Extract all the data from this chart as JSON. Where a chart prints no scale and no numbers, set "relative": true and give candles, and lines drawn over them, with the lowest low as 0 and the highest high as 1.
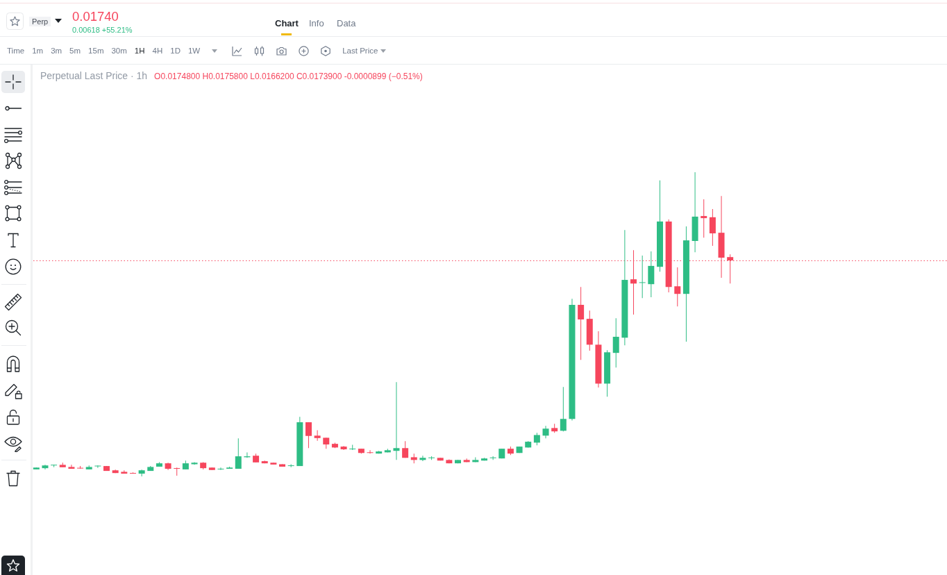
{
  "chart_data": {
    "type": "candlestick",
    "title": "Perpetual Last Price · 1h",
    "subtitle": "O0.0174800 H0.0175800 L0.0166200 C0.0173900 -0.0000899 (−0.51%)",
    "categories": [
      null,
      null,
      null,
      null,
      null,
      null,
      null,
      null,
      null,
      null,
      null,
      null,
      null,
      null,
      null,
      null,
      null,
      null,
      null,
      null,
      null,
      null,
      null,
      null,
      null,
      null,
      null,
      null,
      null,
      null,
      null,
      null,
      null,
      null,
      null,
      null,
      null,
      null,
      null,
      null,
      null,
      null,
      null,
      null,
      null,
      null,
      null,
      null,
      null,
      null,
      null,
      null,
      null,
      null,
      null,
      null,
      null,
      null,
      null,
      null,
      null,
      null,
      null,
      null,
      null,
      null,
      null,
      null,
      null,
      null,
      null,
      null,
      null,
      null,
      null,
      null,
      null,
      null,
      null,
      null
    ],
    "ohlc": [
      [
        0.023,
        0.029,
        0.023,
        0.029
      ],
      [
        0.027,
        0.038,
        0.023,
        0.036
      ],
      [
        0.036,
        0.038,
        0.03,
        0.037
      ],
      [
        0.038,
        0.045,
        0.03,
        0.03
      ],
      [
        0.031,
        0.038,
        0.025,
        0.025
      ],
      [
        0.027,
        0.034,
        0.025,
        0.026
      ],
      [
        0.023,
        0.036,
        0.023,
        0.031
      ],
      [
        0.033,
        0.036,
        0.028,
        0.034
      ],
      [
        0.034,
        0.034,
        0.018,
        0.018
      ],
      [
        0.02,
        0.022,
        0.011,
        0.011
      ],
      [
        0.015,
        0.02,
        0.009,
        0.009
      ],
      [
        0.011,
        0.013,
        0.009,
        0.009
      ],
      [
        0.009,
        0.022,
        0,
        0.02
      ],
      [
        0.018,
        0.034,
        0.018,
        0.031
      ],
      [
        0.032,
        0.047,
        0.032,
        0.043
      ],
      [
        0.043,
        0.045,
        0.021,
        0.025
      ],
      [
        0.027,
        0.029,
        0.002,
        0.025
      ],
      [
        0.023,
        0.052,
        0.023,
        0.043
      ],
      [
        0.04,
        0.047,
        0.038,
        0.045
      ],
      [
        0.045,
        0.047,
        0.023,
        0.027
      ],
      [
        0.029,
        0.029,
        0.021,
        0.021
      ],
      [
        0.023,
        0.029,
        0.021,
        0.024
      ],
      [
        0.025,
        0.032,
        0.025,
        0.029
      ],
      [
        0.025,
        0.125,
        0.025,
        0.066
      ],
      [
        0.063,
        0.079,
        0.061,
        0.066
      ],
      [
        0.068,
        0.075,
        0.046,
        0.046
      ],
      [
        0.05,
        0.052,
        0.043,
        0.043
      ],
      [
        0.045,
        0.045,
        0.039,
        0.039
      ],
      [
        0.04,
        0.04,
        0.032,
        0.032
      ],
      [
        0.034,
        0.04,
        0.03,
        0.035
      ],
      [
        0.034,
        0.196,
        0.034,
        0.178
      ],
      [
        0.178,
        0.178,
        0.093,
        0.133
      ],
      [
        0.134,
        0.152,
        0.117,
        0.126
      ],
      [
        0.127,
        0.127,
        0.091,
        0.105
      ],
      [
        0.107,
        0.111,
        0.093,
        0.095
      ],
      [
        0.098,
        0.1,
        0.087,
        0.089
      ],
      [
        0.089,
        0.104,
        0.087,
        0.09
      ],
      [
        0.091,
        0.091,
        0.075,
        0.077
      ],
      [
        0.079,
        0.086,
        0.075,
        0.077
      ],
      [
        0.075,
        0.084,
        0.075,
        0.082
      ],
      [
        0.079,
        0.091,
        0.079,
        0.086
      ],
      [
        0.084,
        0.31,
        0.054,
        0.093
      ],
      [
        0.093,
        0.116,
        0.061,
        0.061
      ],
      [
        0.063,
        0.075,
        0.043,
        0.054
      ],
      [
        0.054,
        0.068,
        0.05,
        0.061
      ],
      [
        0.06,
        0.066,
        0.054,
        0.061
      ],
      [
        0.061,
        0.061,
        0.052,
        0.052
      ],
      [
        0.054,
        0.056,
        0.043,
        0.043
      ],
      [
        0.043,
        0.054,
        0.043,
        0.054
      ],
      [
        0.054,
        0.059,
        0.047,
        0.047
      ],
      [
        0.047,
        0.063,
        0.047,
        0.054
      ],
      [
        0.052,
        0.061,
        0.052,
        0.059
      ],
      [
        0.06,
        0.066,
        0.054,
        0.061
      ],
      [
        0.059,
        0.091,
        0.059,
        0.091
      ],
      [
        0.091,
        0.098,
        0.07,
        0.075
      ],
      [
        0.077,
        0.098,
        0.077,
        0.098
      ],
      [
        0.095,
        0.116,
        0.095,
        0.114
      ],
      [
        0.111,
        0.143,
        0.102,
        0.136
      ],
      [
        0.134,
        0.166,
        0.125,
        0.157
      ],
      [
        0.159,
        0.173,
        0.143,
        0.148
      ],
      [
        0.15,
        0.294,
        0.148,
        0.189
      ],
      [
        0.189,
        0.584,
        0.184,
        0.564
      ],
      [
        0.564,
        0.623,
        0.383,
        0.516
      ],
      [
        0.518,
        0.545,
        0.413,
        0.433
      ],
      [
        0.433,
        0.477,
        0.292,
        0.305
      ],
      [
        0.305,
        0.415,
        0.262,
        0.408
      ],
      [
        0.406,
        0.52,
        0.358,
        0.459
      ],
      [
        0.456,
        0.81,
        0.431,
        0.646
      ],
      [
        0.648,
        0.744,
        0.532,
        0.634
      ],
      [
        0.636,
        0.726,
        0.586,
        0.637
      ],
      [
        0.632,
        0.74,
        0.589,
        0.692
      ],
      [
        0.689,
        0.973,
        0.673,
        0.838
      ],
      [
        0.838,
        0.845,
        0.605,
        0.623
      ],
      [
        0.625,
        0.687,
        0.559,
        0.6
      ],
      [
        0.6,
        0.822,
        0.443,
        0.776
      ],
      [
        0.774,
        1,
        0.737,
        0.854
      ],
      [
        0.856,
        0.911,
        0.785,
        0.849
      ],
      [
        0.852,
        0.879,
        0.758,
        0.799
      ],
      [
        0.801,
        0.922,
        0.653,
        0.719
      ],
      [
        0.721,
        0.73,
        0.634,
        0.71
      ]
    ],
    "colors": [
      "#2ebd85",
      "#2ebd85",
      "#2ebd85",
      "#f6465d",
      "#f6465d",
      "#f6465d",
      "#2ebd85",
      "#2ebd85",
      "#f6465d",
      "#f6465d",
      "#f6465d",
      "#f6465d",
      "#2ebd85",
      "#2ebd85",
      "#2ebd85",
      "#f6465d",
      "#f6465d",
      "#2ebd85",
      "#2ebd85",
      "#f6465d",
      "#f6465d",
      "#2ebd85",
      "#2ebd85",
      "#2ebd85",
      "#2ebd85",
      "#f6465d",
      "#f6465d",
      "#f6465d",
      "#f6465d",
      "#2ebd85",
      "#2ebd85",
      "#f6465d",
      "#f6465d",
      "#f6465d",
      "#f6465d",
      "#f6465d",
      "#2ebd85",
      "#f6465d",
      "#f6465d",
      "#2ebd85",
      "#2ebd85",
      "#2ebd85",
      "#f6465d",
      "#f6465d",
      "#2ebd85",
      "#2ebd85",
      "#f6465d",
      "#f6465d",
      "#2ebd85",
      "#f6465d",
      "#2ebd85",
      "#2ebd85",
      "#2ebd85",
      "#2ebd85",
      "#f6465d",
      "#2ebd85",
      "#2ebd85",
      "#2ebd85",
      "#2ebd85",
      "#f6465d",
      "#2ebd85",
      "#2ebd85",
      "#f6465d",
      "#f6465d",
      "#f6465d",
      "#2ebd85",
      "#2ebd85",
      "#2ebd85",
      "#f6465d",
      "#2ebd85",
      "#2ebd85",
      "#2ebd85",
      "#f6465d",
      "#f6465d",
      "#2ebd85",
      "#2ebd85",
      "#f6465d",
      "#f6465d",
      "#f6465d",
      "#f6465d"
    ],
    "relative": true,
    "ref_lines": [
      {
        "axis": "y",
        "value": 0.711,
        "color": "#f6465d",
        "line_style": "dotted"
      }
    ],
    "annotations": [
      "Perp",
      "0.01740",
      "0.00618 +55.21%",
      "Chart",
      "Info",
      "Data",
      "Time",
      "1m",
      "3m",
      "5m",
      "15m",
      "30m",
      "1H",
      "4H",
      "1D",
      "1W",
      "Last Price"
    ]
  }
}
